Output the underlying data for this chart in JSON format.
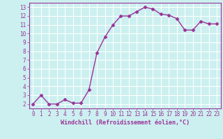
{
  "x": [
    0,
    1,
    2,
    3,
    4,
    5,
    6,
    7,
    8,
    9,
    10,
    11,
    12,
    13,
    14,
    15,
    16,
    17,
    18,
    19,
    20,
    21,
    22,
    23
  ],
  "y": [
    2.0,
    3.0,
    2.0,
    2.0,
    2.5,
    2.1,
    2.1,
    3.6,
    7.8,
    9.6,
    11.0,
    12.0,
    12.0,
    12.5,
    13.0,
    12.8,
    12.2,
    12.1,
    11.7,
    10.4,
    10.4,
    11.4,
    11.1,
    11.1
  ],
  "line_color": "#993399",
  "marker": "D",
  "markersize": 2.5,
  "bg_color": "#ccf0f0",
  "xlabel": "Windchill (Refroidissement éolien,°C)",
  "ylabel": "",
  "title": "",
  "xlim": [
    -0.5,
    23.5
  ],
  "ylim": [
    1.5,
    13.5
  ],
  "yticks": [
    2,
    3,
    4,
    5,
    6,
    7,
    8,
    9,
    10,
    11,
    12,
    13
  ],
  "xticks": [
    0,
    1,
    2,
    3,
    4,
    5,
    6,
    7,
    8,
    9,
    10,
    11,
    12,
    13,
    14,
    15,
    16,
    17,
    18,
    19,
    20,
    21,
    22,
    23
  ],
  "grid_color": "#ffffff",
  "tick_color": "#993399",
  "label_color": "#993399",
  "font": "monospace",
  "tick_fontsize": 5.5,
  "xlabel_fontsize": 6.0,
  "linewidth": 1.0
}
